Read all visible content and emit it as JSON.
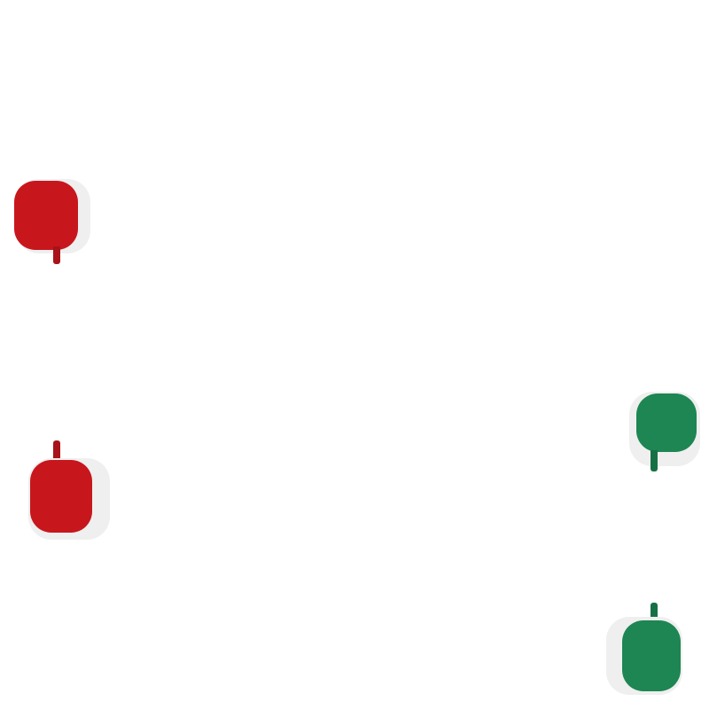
{
  "colors": {
    "red": "#c8161d",
    "red_dark": "#a81219",
    "green": "#1d8653",
    "green_dark": "#177045",
    "shadow": "#efefef",
    "background": "#ffffff"
  },
  "markers": [
    {
      "name": "red-marker-top-left",
      "color": "red",
      "tail": "down"
    },
    {
      "name": "red-marker-bottom-left",
      "color": "red",
      "tail": "up"
    },
    {
      "name": "green-marker-right-top",
      "color": "green",
      "tail": "down"
    },
    {
      "name": "green-marker-right-bottom",
      "color": "green",
      "tail": "up"
    }
  ]
}
